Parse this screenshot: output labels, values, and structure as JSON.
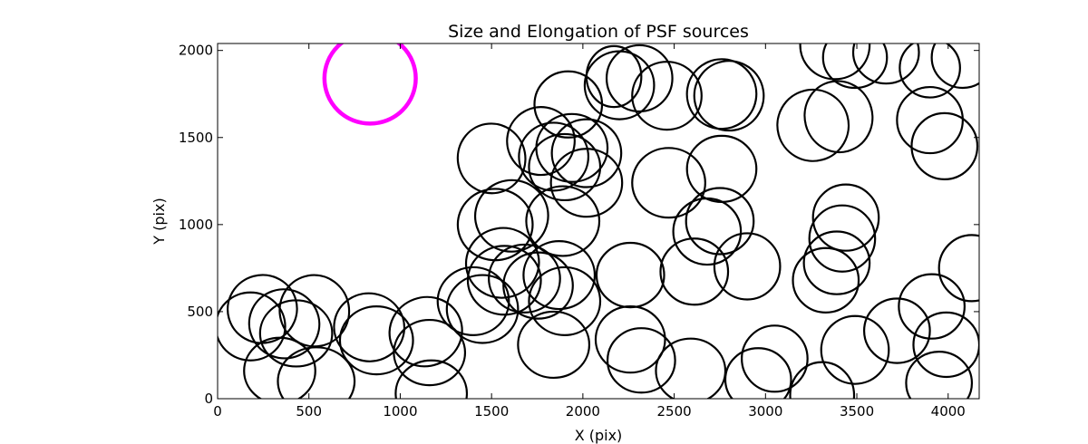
{
  "chart_data": {
    "type": "scatter",
    "marker": "ellipse",
    "title": "Size and Elongation of PSF sources",
    "xlabel": "X (pix)",
    "ylabel": "Y (pix)",
    "xlim": [
      0,
      4170
    ],
    "ylim": [
      0,
      2040
    ],
    "x_ticks": [
      0,
      500,
      1000,
      1500,
      2000,
      2500,
      3000,
      3500,
      4000
    ],
    "y_ticks": [
      0,
      500,
      1000,
      1500,
      2000
    ],
    "x_tick_labels": [
      "0",
      "500",
      "1000",
      "1500",
      "2000",
      "2500",
      "3000",
      "3500",
      "4000"
    ],
    "y_tick_labels": [
      "0",
      "500",
      "1000",
      "1500",
      "2000"
    ],
    "colors": {
      "sources": "#000000",
      "reference": "#ff00ff"
    },
    "reference_ellipse": {
      "x": 835,
      "y": 1840,
      "width": 500,
      "height": 520,
      "angle": 0
    },
    "sources": [
      {
        "x": 180,
        "y": 415,
        "width": 380,
        "height": 390,
        "angle": 0
      },
      {
        "x": 245,
        "y": 515,
        "width": 380,
        "height": 390,
        "angle": 15
      },
      {
        "x": 365,
        "y": 430,
        "width": 385,
        "height": 395,
        "angle": -20
      },
      {
        "x": 530,
        "y": 505,
        "width": 380,
        "height": 410,
        "angle": 10
      },
      {
        "x": 430,
        "y": 375,
        "width": 395,
        "height": 380,
        "angle": 0
      },
      {
        "x": 340,
        "y": 160,
        "width": 390,
        "height": 380,
        "angle": 0
      },
      {
        "x": 540,
        "y": 100,
        "width": 420,
        "height": 390,
        "angle": 0
      },
      {
        "x": 830,
        "y": 410,
        "width": 385,
        "height": 390,
        "angle": -10
      },
      {
        "x": 870,
        "y": 335,
        "width": 400,
        "height": 390,
        "angle": 0
      },
      {
        "x": 1140,
        "y": 385,
        "width": 400,
        "height": 395,
        "angle": 20
      },
      {
        "x": 1160,
        "y": 265,
        "width": 390,
        "height": 375,
        "angle": 0
      },
      {
        "x": 1170,
        "y": 30,
        "width": 390,
        "height": 380,
        "angle": 0
      },
      {
        "x": 1400,
        "y": 560,
        "width": 390,
        "height": 390,
        "angle": 0
      },
      {
        "x": 1450,
        "y": 515,
        "width": 390,
        "height": 390,
        "angle": 0
      },
      {
        "x": 1570,
        "y": 680,
        "width": 400,
        "height": 395,
        "angle": 0
      },
      {
        "x": 1560,
        "y": 780,
        "width": 400,
        "height": 400,
        "angle": 10
      },
      {
        "x": 1680,
        "y": 690,
        "width": 390,
        "height": 390,
        "angle": 0
      },
      {
        "x": 1755,
        "y": 650,
        "width": 380,
        "height": 380,
        "angle": 0
      },
      {
        "x": 1870,
        "y": 710,
        "width": 390,
        "height": 390,
        "angle": 0
      },
      {
        "x": 1900,
        "y": 560,
        "width": 390,
        "height": 390,
        "angle": 0
      },
      {
        "x": 1840,
        "y": 310,
        "width": 390,
        "height": 380,
        "angle": 0
      },
      {
        "x": 1520,
        "y": 1000,
        "width": 410,
        "height": 410,
        "angle": 0
      },
      {
        "x": 1610,
        "y": 1050,
        "width": 400,
        "height": 410,
        "angle": 10
      },
      {
        "x": 1500,
        "y": 1380,
        "width": 370,
        "height": 400,
        "angle": 10
      },
      {
        "x": 1890,
        "y": 1020,
        "width": 400,
        "height": 400,
        "angle": 0
      },
      {
        "x": 1770,
        "y": 1480,
        "width": 370,
        "height": 390,
        "angle": -10
      },
      {
        "x": 1840,
        "y": 1390,
        "width": 380,
        "height": 390,
        "angle": 0
      },
      {
        "x": 1900,
        "y": 1330,
        "width": 390,
        "height": 380,
        "angle": 0
      },
      {
        "x": 1940,
        "y": 1440,
        "width": 390,
        "height": 390,
        "angle": 0
      },
      {
        "x": 2020,
        "y": 1240,
        "width": 390,
        "height": 390,
        "angle": 0
      },
      {
        "x": 2020,
        "y": 1410,
        "width": 380,
        "height": 390,
        "angle": 0
      },
      {
        "x": 1920,
        "y": 1690,
        "width": 370,
        "height": 380,
        "angle": 0
      },
      {
        "x": 2200,
        "y": 1800,
        "width": 380,
        "height": 390,
        "angle": 0
      },
      {
        "x": 2310,
        "y": 1840,
        "width": 360,
        "height": 380,
        "angle": 0
      },
      {
        "x": 2170,
        "y": 1850,
        "width": 300,
        "height": 350,
        "angle": 0
      },
      {
        "x": 2460,
        "y": 1740,
        "width": 380,
        "height": 390,
        "angle": 0
      },
      {
        "x": 2470,
        "y": 1240,
        "width": 400,
        "height": 400,
        "angle": 0
      },
      {
        "x": 2760,
        "y": 1320,
        "width": 380,
        "height": 380,
        "angle": 0
      },
      {
        "x": 2760,
        "y": 1750,
        "width": 380,
        "height": 400,
        "angle": -10
      },
      {
        "x": 2800,
        "y": 1740,
        "width": 380,
        "height": 400,
        "angle": 10
      },
      {
        "x": 2260,
        "y": 710,
        "width": 370,
        "height": 370,
        "angle": 0
      },
      {
        "x": 2260,
        "y": 340,
        "width": 380,
        "height": 380,
        "angle": 0
      },
      {
        "x": 2320,
        "y": 220,
        "width": 370,
        "height": 370,
        "angle": 0
      },
      {
        "x": 2590,
        "y": 160,
        "width": 380,
        "height": 370,
        "angle": 0
      },
      {
        "x": 2610,
        "y": 730,
        "width": 370,
        "height": 380,
        "angle": 0
      },
      {
        "x": 2680,
        "y": 960,
        "width": 370,
        "height": 380,
        "angle": 0
      },
      {
        "x": 2750,
        "y": 1020,
        "width": 370,
        "height": 380,
        "angle": 0
      },
      {
        "x": 2900,
        "y": 760,
        "width": 360,
        "height": 380,
        "angle": 0
      },
      {
        "x": 2960,
        "y": 110,
        "width": 360,
        "height": 360,
        "angle": 0
      },
      {
        "x": 3050,
        "y": 230,
        "width": 360,
        "height": 380,
        "angle": 0
      },
      {
        "x": 3310,
        "y": 20,
        "width": 350,
        "height": 380,
        "angle": 0
      },
      {
        "x": 3260,
        "y": 1570,
        "width": 390,
        "height": 410,
        "angle": 15
      },
      {
        "x": 3400,
        "y": 1620,
        "width": 370,
        "height": 410,
        "angle": 15
      },
      {
        "x": 3330,
        "y": 680,
        "width": 360,
        "height": 370,
        "angle": 0
      },
      {
        "x": 3390,
        "y": 780,
        "width": 360,
        "height": 360,
        "angle": 0
      },
      {
        "x": 3440,
        "y": 1040,
        "width": 360,
        "height": 380,
        "angle": 0
      },
      {
        "x": 3420,
        "y": 920,
        "width": 360,
        "height": 380,
        "angle": 0
      },
      {
        "x": 3490,
        "y": 280,
        "width": 370,
        "height": 390,
        "angle": 0
      },
      {
        "x": 3720,
        "y": 390,
        "width": 360,
        "height": 370,
        "angle": 0
      },
      {
        "x": 3380,
        "y": 2030,
        "width": 380,
        "height": 390,
        "angle": 0
      },
      {
        "x": 3490,
        "y": 1960,
        "width": 350,
        "height": 350,
        "angle": 0
      },
      {
        "x": 3660,
        "y": 1990,
        "width": 360,
        "height": 360,
        "angle": 0
      },
      {
        "x": 3900,
        "y": 1900,
        "width": 330,
        "height": 340,
        "angle": 0
      },
      {
        "x": 3900,
        "y": 1600,
        "width": 360,
        "height": 380,
        "angle": 0
      },
      {
        "x": 3980,
        "y": 1450,
        "width": 360,
        "height": 380,
        "angle": 0
      },
      {
        "x": 4080,
        "y": 1960,
        "width": 340,
        "height": 350,
        "angle": 0
      },
      {
        "x": 3910,
        "y": 530,
        "width": 360,
        "height": 370,
        "angle": 0
      },
      {
        "x": 3990,
        "y": 310,
        "width": 360,
        "height": 370,
        "angle": 0
      },
      {
        "x": 3950,
        "y": 90,
        "width": 360,
        "height": 360,
        "angle": 0
      },
      {
        "x": 4130,
        "y": 750,
        "width": 360,
        "height": 380,
        "angle": 0
      }
    ]
  }
}
